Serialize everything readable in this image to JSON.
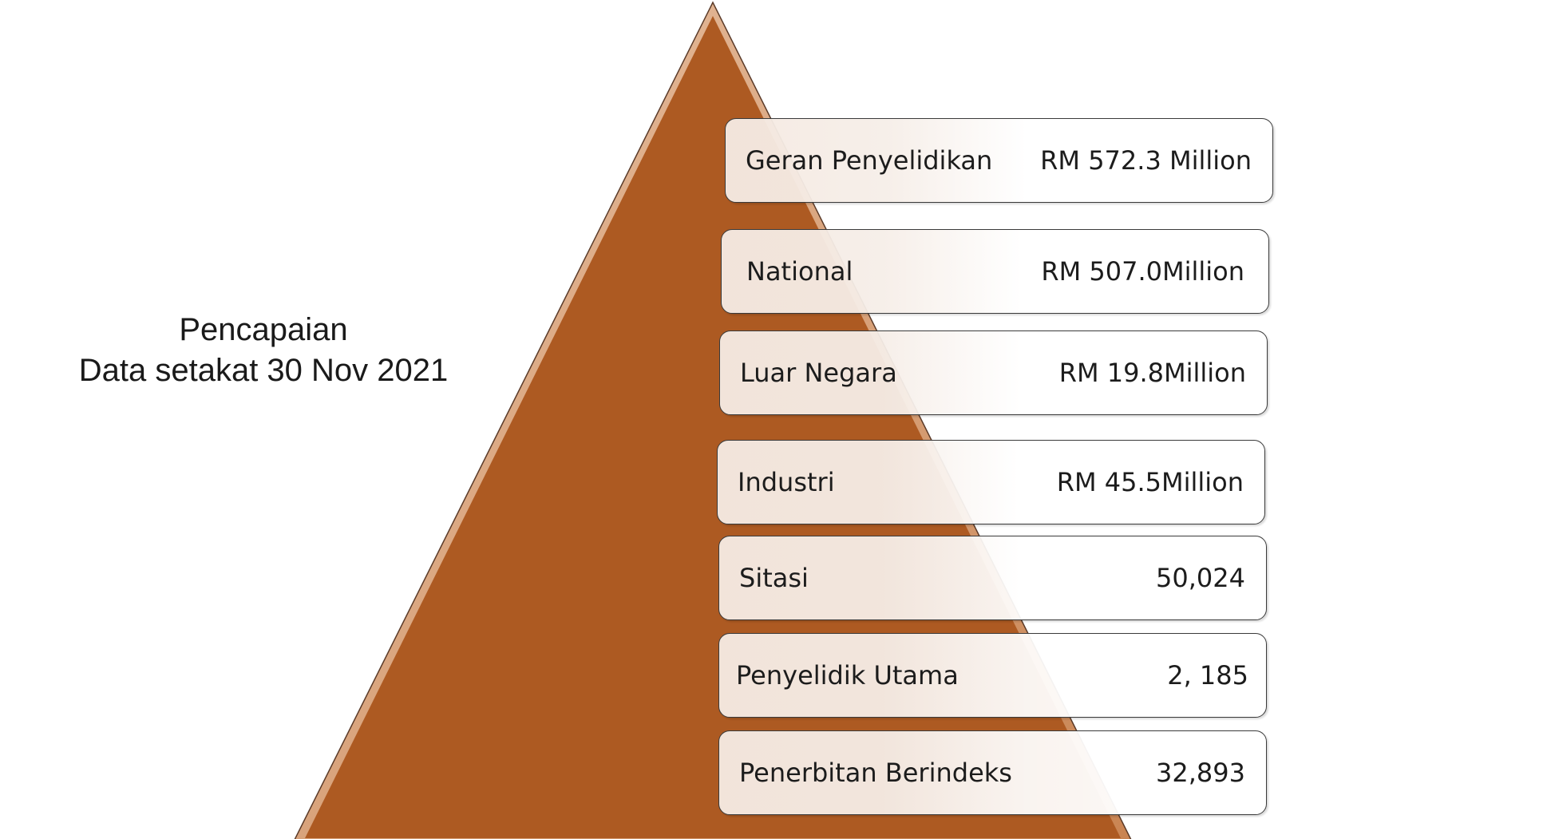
{
  "title": {
    "line1": "Pencapaian",
    "line2": "Data setakat 30 Nov 2021"
  },
  "colors": {
    "pyramid_fill": "#AD5A22",
    "pyramid_edge": "#D9A27A",
    "box_border": "#3A3A3A",
    "text": "#1C1C1C"
  },
  "rows": [
    {
      "label": "Geran Penyelidikan",
      "value": "RM 572.3 Million"
    },
    {
      "label": "National",
      "value": "RM 507.0Million"
    },
    {
      "label": "Luar Negara",
      "value": "RM 19.8Million"
    },
    {
      "label": "Industri",
      "value": "RM 45.5Million"
    },
    {
      "label": "Sitasi",
      "value": "50,024"
    },
    {
      "label": "Penyelidik Utama",
      "value": "2, 185"
    },
    {
      "label": "Penerbitan Berindeks",
      "value": "32,893"
    }
  ]
}
